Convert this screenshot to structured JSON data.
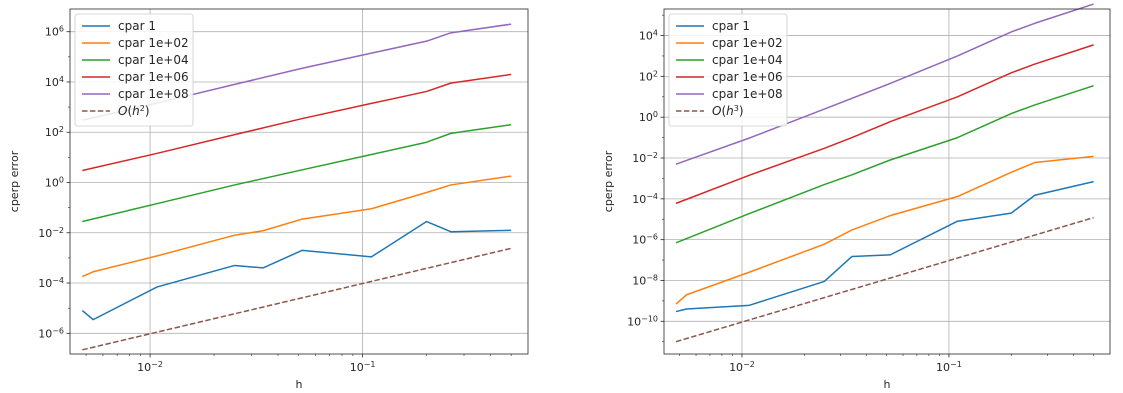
{
  "chart_data": [
    {
      "type": "line",
      "xscale": "log",
      "yscale": "log",
      "xlabel": "h",
      "ylabel": "cperp error",
      "xlim": [
        0.0042,
        0.6
      ],
      "ylim": [
        1.5e-07,
        8000000.0
      ],
      "grid": true,
      "legend_position": "upper-left",
      "x_ticks": [
        {
          "value": 0.01,
          "base": "10",
          "exp": "−2"
        },
        {
          "value": 0.1,
          "base": "10",
          "exp": "−1"
        }
      ],
      "y_ticks": [
        {
          "value": 1e-06,
          "base": "10",
          "exp": "−6"
        },
        {
          "value": 0.0001,
          "base": "10",
          "exp": "−4"
        },
        {
          "value": 0.01,
          "base": "10",
          "exp": "−2"
        },
        {
          "value": 1,
          "base": "10",
          "exp": "0"
        },
        {
          "value": 100,
          "base": "10",
          "exp": "2"
        },
        {
          "value": 10000,
          "base": "10",
          "exp": "4"
        },
        {
          "value": 1000000,
          "base": "10",
          "exp": "6"
        }
      ],
      "series": [
        {
          "name": "cpar 1",
          "color": "#1f77b4",
          "dashed": false,
          "x": [
            0.0048,
            0.0054,
            0.0108,
            0.025,
            0.034,
            0.052,
            0.11,
            0.2,
            0.26,
            0.5
          ],
          "y": [
            8e-06,
            3.5e-06,
            7e-05,
            0.0005,
            0.0004,
            0.002,
            0.0011,
            0.028,
            0.011,
            0.0125
          ]
        },
        {
          "name": "cpar 1e+02",
          "color": "#ff7f0e",
          "dashed": false,
          "x": [
            0.0048,
            0.0054,
            0.0108,
            0.025,
            0.034,
            0.052,
            0.11,
            0.2,
            0.26,
            0.5
          ],
          "y": [
            0.00018,
            0.00028,
            0.0012,
            0.008,
            0.012,
            0.035,
            0.09,
            0.4,
            0.8,
            1.8
          ]
        },
        {
          "name": "cpar 1e+04",
          "color": "#2ca02c",
          "dashed": false,
          "x": [
            0.0048,
            0.011,
            0.025,
            0.052,
            0.11,
            0.2,
            0.26,
            0.5
          ],
          "y": [
            0.028,
            0.15,
            0.8,
            3.2,
            13,
            40,
            90,
            200
          ]
        },
        {
          "name": "cpar 1e+06",
          "color": "#d62728",
          "dashed": false,
          "x": [
            0.0048,
            0.011,
            0.025,
            0.052,
            0.11,
            0.2,
            0.26,
            0.5
          ],
          "y": [
            3,
            15,
            80,
            350,
            1400,
            4200,
            9000,
            20000
          ]
        },
        {
          "name": "cpar 1e+08",
          "color": "#9467bd",
          "dashed": false,
          "x": [
            0.0048,
            0.011,
            0.025,
            0.052,
            0.11,
            0.2,
            0.26,
            0.5
          ],
          "y": [
            300,
            1500,
            8000,
            35000,
            140000,
            420000,
            900000,
            2000000
          ]
        },
        {
          "name": "O(h^2)",
          "label_prefix": "O(h",
          "label_exp": "2",
          "label_suffix": ")",
          "color": "#8c564b",
          "dashed": true,
          "x": [
            0.0048,
            0.5
          ],
          "y": [
            2.2e-07,
            0.0024
          ]
        }
      ]
    },
    {
      "type": "line",
      "xscale": "log",
      "yscale": "log",
      "xlabel": "h",
      "ylabel": "cperp error",
      "xlim": [
        0.0042,
        0.6
      ],
      "ylim": [
        2.5e-12,
        200000.0
      ],
      "grid": true,
      "legend_position": "upper-left",
      "x_ticks": [
        {
          "value": 0.01,
          "base": "10",
          "exp": "−2"
        },
        {
          "value": 0.1,
          "base": "10",
          "exp": "−1"
        }
      ],
      "y_ticks": [
        {
          "value": 1e-10,
          "base": "10",
          "exp": "−10"
        },
        {
          "value": 1e-08,
          "base": "10",
          "exp": "−8"
        },
        {
          "value": 1e-06,
          "base": "10",
          "exp": "−6"
        },
        {
          "value": 0.0001,
          "base": "10",
          "exp": "−4"
        },
        {
          "value": 0.01,
          "base": "10",
          "exp": "−2"
        },
        {
          "value": 1,
          "base": "10",
          "exp": "0"
        },
        {
          "value": 100,
          "base": "10",
          "exp": "2"
        },
        {
          "value": 10000,
          "base": "10",
          "exp": "4"
        }
      ],
      "series": [
        {
          "name": "cpar 1",
          "color": "#1f77b4",
          "dashed": false,
          "x": [
            0.0048,
            0.0054,
            0.0108,
            0.025,
            0.034,
            0.052,
            0.11,
            0.2,
            0.26,
            0.5
          ],
          "y": [
            3e-10,
            4e-10,
            6e-10,
            9e-09,
            1.5e-07,
            1.8e-07,
            8e-06,
            2e-05,
            0.00015,
            0.0007
          ]
        },
        {
          "name": "cpar 1e+02",
          "color": "#ff7f0e",
          "dashed": false,
          "x": [
            0.0048,
            0.0054,
            0.0108,
            0.025,
            0.034,
            0.052,
            0.11,
            0.2,
            0.26,
            0.5
          ],
          "y": [
            7e-10,
            2e-09,
            2.5e-08,
            6e-07,
            3e-06,
            1.5e-05,
            0.00013,
            0.002,
            0.006,
            0.012
          ]
        },
        {
          "name": "cpar 1e+04",
          "color": "#2ca02c",
          "dashed": false,
          "x": [
            0.0048,
            0.011,
            0.025,
            0.034,
            0.052,
            0.11,
            0.2,
            0.26,
            0.5
          ],
          "y": [
            7e-07,
            2e-05,
            0.0005,
            0.0015,
            0.008,
            0.1,
            1.5,
            4,
            35
          ]
        },
        {
          "name": "cpar 1e+06",
          "color": "#d62728",
          "dashed": false,
          "x": [
            0.0048,
            0.011,
            0.025,
            0.034,
            0.052,
            0.11,
            0.2,
            0.26,
            0.5
          ],
          "y": [
            6e-05,
            0.0015,
            0.03,
            0.1,
            0.6,
            10,
            150,
            400,
            3500
          ]
        },
        {
          "name": "cpar 1e+08",
          "color": "#9467bd",
          "dashed": false,
          "x": [
            0.0048,
            0.011,
            0.025,
            0.052,
            0.11,
            0.2,
            0.26,
            0.5
          ],
          "y": [
            0.005,
            0.1,
            2.5,
            45,
            1000,
            15000,
            40000,
            350000
          ]
        },
        {
          "name": "O(h^3)",
          "label_prefix": "O(h",
          "label_exp": "3",
          "label_suffix": ")",
          "color": "#8c564b",
          "dashed": true,
          "x": [
            0.0048,
            0.5
          ],
          "y": [
            1e-11,
            1.2e-05
          ]
        }
      ]
    }
  ]
}
